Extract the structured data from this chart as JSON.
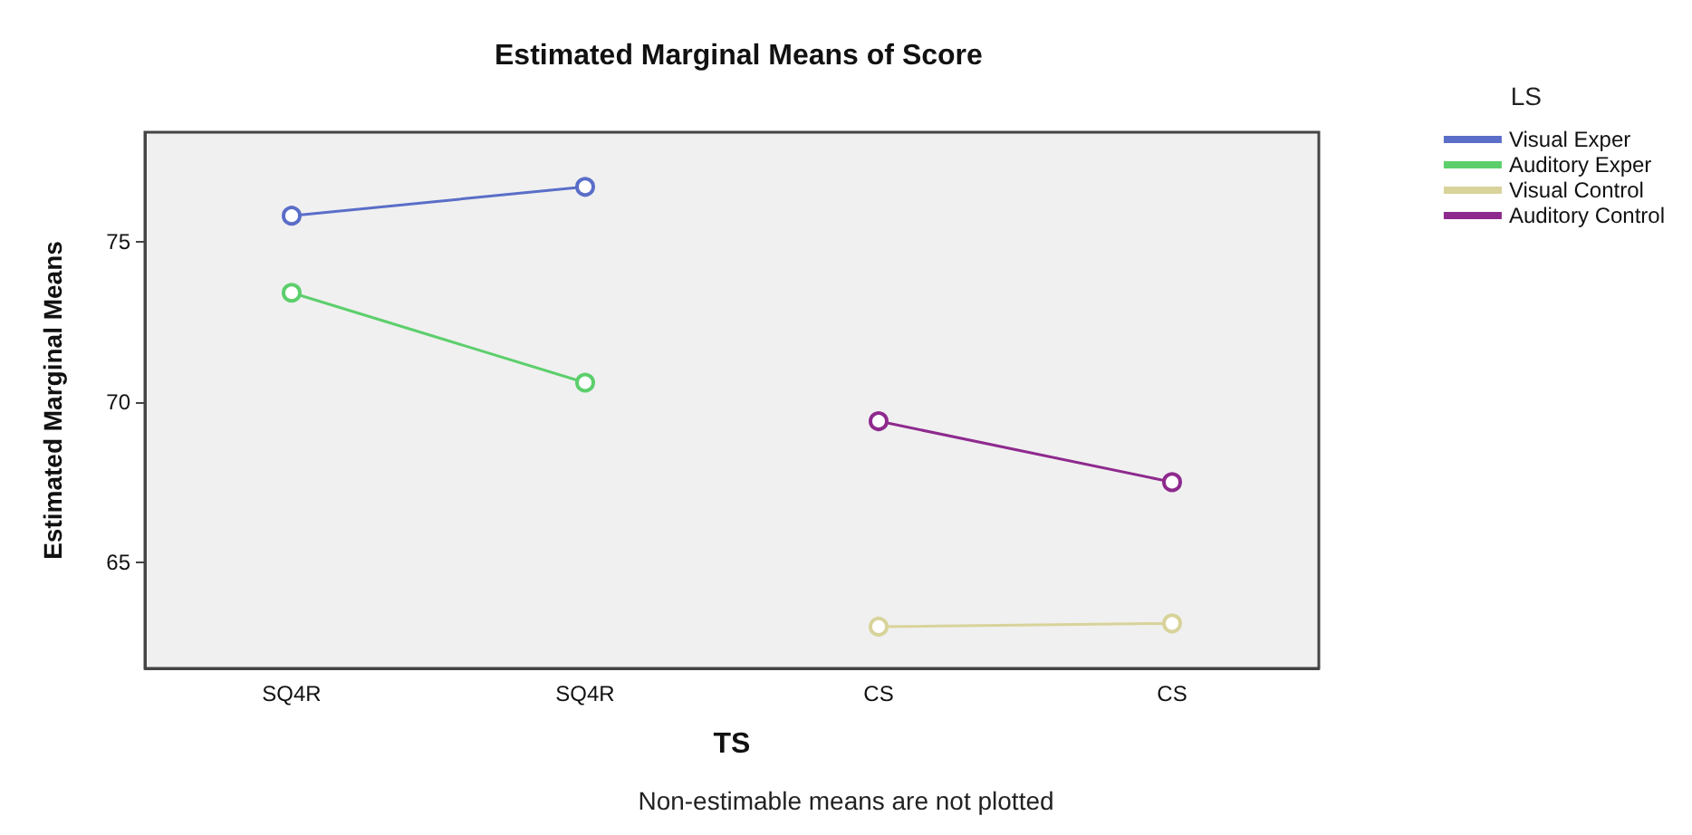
{
  "chart_data": {
    "type": "line",
    "title": "Estimated Marginal Means of Score",
    "xlabel": "TS",
    "ylabel": "Estimated Marginal Means",
    "legend_title": "LS",
    "annotations": [
      "Non-estimable means are not plotted"
    ],
    "categories": [
      "SQ4R",
      "SQ4R",
      "CS",
      "CS"
    ],
    "series": [
      {
        "name": "Visual Exper",
        "color": "#5a6ec8",
        "values": [
          75.8,
          76.7,
          null,
          null
        ]
      },
      {
        "name": "Auditory Exper",
        "color": "#5ccf6c",
        "values": [
          73.4,
          70.6,
          null,
          null
        ]
      },
      {
        "name": "Visual Control",
        "color": "#d8d39a",
        "values": [
          null,
          null,
          63.0,
          63.1
        ]
      },
      {
        "name": "Auditory Control",
        "color": "#8e2a8e",
        "values": [
          null,
          null,
          69.4,
          67.5
        ]
      }
    ],
    "ylim": [
      61.7,
      78.4
    ],
    "yticks": [
      65,
      70,
      75
    ],
    "grid": false,
    "legend": "top right",
    "marker": "circle",
    "line_style": "solid"
  }
}
